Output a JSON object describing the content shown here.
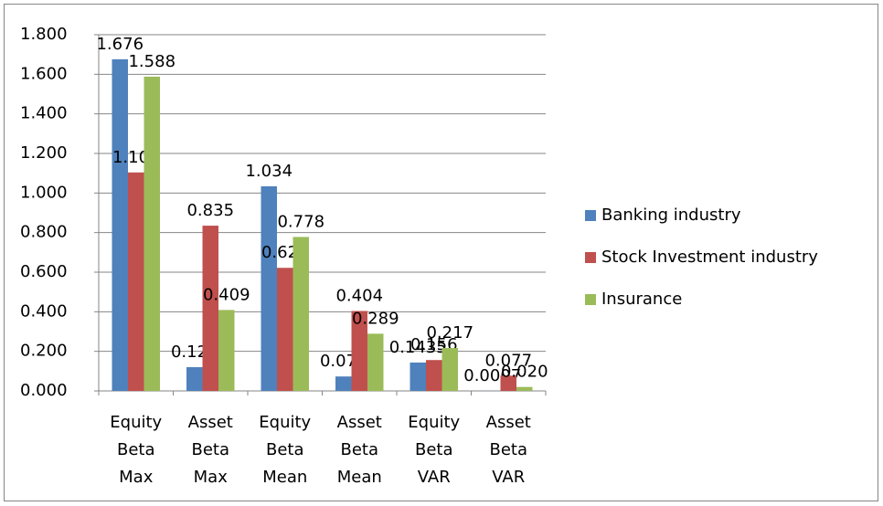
{
  "chart_data": {
    "type": "bar",
    "categories": [
      "Equity Beta Max",
      "Asset Beta Max",
      "Equity Beta Mean",
      "Asset Beta Mean",
      "Equity Beta VAR",
      "Asset Beta VAR"
    ],
    "series": [
      {
        "name": "Banking industry",
        "color": "#4f81bd",
        "values": [
          1.676,
          0.12,
          1.034,
          0.073,
          0.1435,
          0.0007
        ],
        "value_labels": [
          "1.676",
          "0.120",
          "1.034",
          "0.073",
          "0.1435",
          "0.0007"
        ]
      },
      {
        "name": "Stock Investment industry",
        "color": "#c0504d",
        "values": [
          1.104,
          0.835,
          0.622,
          0.404,
          0.156,
          0.077
        ],
        "value_labels": [
          "1.104",
          "0.835",
          "0.622",
          "0.404",
          "0.156",
          "0.077"
        ]
      },
      {
        "name": "Insurance",
        "color": "#9bbb59",
        "values": [
          1.588,
          0.409,
          0.778,
          0.289,
          0.217,
          0.02
        ],
        "value_labels": [
          "1.588",
          "0.409",
          "0.778",
          "0.289",
          "0.217",
          "0.020"
        ]
      }
    ],
    "ylim": [
      0,
      1.8
    ],
    "yticks": [
      {
        "value": 0,
        "label": "0.000"
      },
      {
        "value": 0.2,
        "label": "0.200"
      },
      {
        "value": 0.4,
        "label": "0.400"
      },
      {
        "value": 0.6,
        "label": "0.600"
      },
      {
        "value": 0.8,
        "label": "0.800"
      },
      {
        "value": 1.0,
        "label": "1.000"
      },
      {
        "value": 1.2,
        "label": "1.200"
      },
      {
        "value": 1.4,
        "label": "1.400"
      },
      {
        "value": 1.6,
        "label": "1.600"
      },
      {
        "value": 1.8,
        "label": "1.800"
      }
    ],
    "grid": true,
    "legend": "right"
  }
}
